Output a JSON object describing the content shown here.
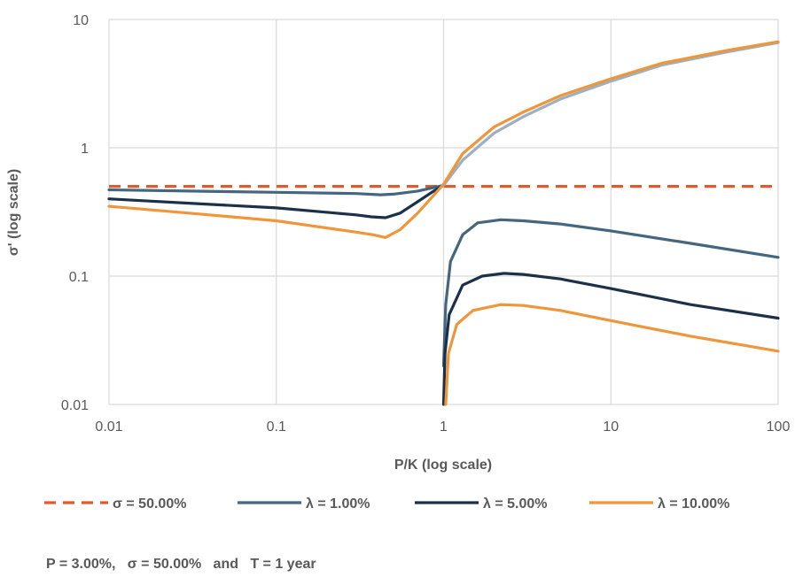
{
  "chart_data": {
    "type": "line",
    "xscale": "log",
    "yscale": "log",
    "xlim": [
      0.01,
      100
    ],
    "ylim": [
      0.01,
      10
    ],
    "xlabel": "P/K (log scale)",
    "ylabel": "σ' (log scale)",
    "xticks": [
      "0.01",
      "0.1",
      "1",
      "10",
      "100"
    ],
    "yticks": [
      "0.01",
      "0.1",
      "1",
      "10"
    ],
    "grid": true,
    "legend_position": "bottom",
    "note": "P = 3.00%,   σ = 50.00%   and   T = 1 year",
    "series": [
      {
        "name": "σ = 50.00%",
        "color": "#E05A2B",
        "dash": true,
        "segments": [
          [
            [
              0.01,
              0.5
            ],
            [
              100,
              0.5
            ]
          ]
        ]
      },
      {
        "name": "λ = 1.00%",
        "color": "#44667F",
        "dash": false,
        "segments": [
          [
            [
              0.01,
              0.47
            ],
            [
              0.03,
              0.46
            ],
            [
              0.1,
              0.45
            ],
            [
              0.3,
              0.44
            ],
            [
              0.42,
              0.43
            ],
            [
              0.5,
              0.435
            ],
            [
              0.7,
              0.46
            ],
            [
              1.0,
              0.51
            ]
          ],
          [
            [
              1.0,
              0.02
            ],
            [
              1.03,
              0.06
            ],
            [
              1.1,
              0.13
            ],
            [
              1.3,
              0.21
            ],
            [
              1.6,
              0.26
            ],
            [
              2.2,
              0.275
            ],
            [
              3,
              0.27
            ],
            [
              5,
              0.255
            ],
            [
              10,
              0.225
            ],
            [
              30,
              0.18
            ],
            [
              100,
              0.14
            ]
          ]
        ]
      },
      {
        "name": "λ = 5.00%",
        "color": "#1B3149",
        "dash": false,
        "segments": [
          [
            [
              0.01,
              0.4
            ],
            [
              0.03,
              0.37
            ],
            [
              0.1,
              0.34
            ],
            [
              0.3,
              0.3
            ],
            [
              0.37,
              0.29
            ],
            [
              0.45,
              0.285
            ],
            [
              0.55,
              0.31
            ],
            [
              0.7,
              0.38
            ],
            [
              0.85,
              0.45
            ],
            [
              1.0,
              0.51
            ]
          ],
          [
            [
              1.0,
              0.01
            ],
            [
              1.02,
              0.025
            ],
            [
              1.08,
              0.05
            ],
            [
              1.3,
              0.085
            ],
            [
              1.7,
              0.1
            ],
            [
              2.3,
              0.105
            ],
            [
              3,
              0.103
            ],
            [
              5,
              0.095
            ],
            [
              10,
              0.08
            ],
            [
              30,
              0.06
            ],
            [
              100,
              0.047
            ]
          ]
        ]
      },
      {
        "name": "λ = 10.00%",
        "color": "#F0963A",
        "dash": false,
        "segments": [
          [
            [
              0.01,
              0.35
            ],
            [
              0.03,
              0.31
            ],
            [
              0.1,
              0.27
            ],
            [
              0.3,
              0.22
            ],
            [
              0.38,
              0.21
            ],
            [
              0.45,
              0.2
            ],
            [
              0.55,
              0.23
            ],
            [
              0.7,
              0.31
            ],
            [
              0.85,
              0.41
            ],
            [
              1.0,
              0.52
            ]
          ],
          [
            [
              1.03,
              0.01
            ],
            [
              1.07,
              0.025
            ],
            [
              1.2,
              0.042
            ],
            [
              1.5,
              0.054
            ],
            [
              2.2,
              0.06
            ],
            [
              3,
              0.059
            ],
            [
              5,
              0.054
            ],
            [
              10,
              0.045
            ],
            [
              30,
              0.034
            ],
            [
              100,
              0.026
            ]
          ]
        ]
      },
      {
        "name": "",
        "color": "#9BB0C4",
        "dash": false,
        "segments": [
          [
            [
              1.0,
              0.51
            ],
            [
              1.3,
              0.8
            ],
            [
              2,
              1.3
            ],
            [
              3,
              1.75
            ],
            [
              5,
              2.4
            ],
            [
              10,
              3.3
            ],
            [
              20,
              4.4
            ],
            [
              50,
              5.6
            ],
            [
              100,
              6.6
            ]
          ]
        ]
      },
      {
        "name": "",
        "color": "#F0963A",
        "dash": false,
        "segments": [
          [
            [
              1.0,
              0.52
            ],
            [
              1.3,
              0.9
            ],
            [
              2,
              1.45
            ],
            [
              3,
              1.9
            ],
            [
              5,
              2.55
            ],
            [
              10,
              3.45
            ],
            [
              20,
              4.55
            ],
            [
              50,
              5.75
            ],
            [
              100,
              6.7
            ]
          ]
        ]
      }
    ]
  }
}
